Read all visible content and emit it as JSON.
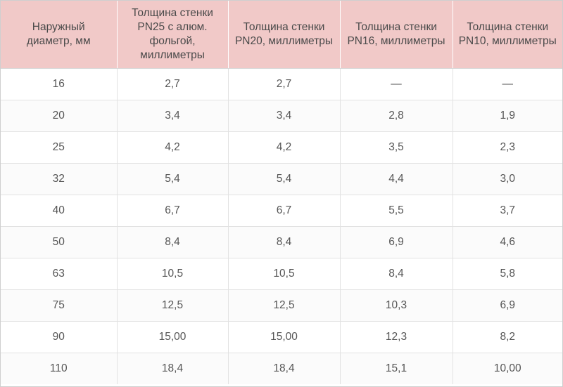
{
  "table": {
    "headers": [
      "Наружный диаметр, мм",
      "Толщина стенки PN25 с алюм. фольгой, миллиметры",
      "Толщина стенки PN20, миллиметры",
      "Толщина стенки PN16, миллиметры",
      "Толщина стенки PN10, миллиметры"
    ],
    "rows": [
      [
        "16",
        "2,7",
        "2,7",
        "—",
        "—"
      ],
      [
        "20",
        "3,4",
        "3,4",
        "2,8",
        "1,9"
      ],
      [
        "25",
        "4,2",
        "4,2",
        "3,5",
        "2,3"
      ],
      [
        "32",
        "5,4",
        "5,4",
        "4,4",
        "3,0"
      ],
      [
        "40",
        "6,7",
        "6,7",
        "5,5",
        "3,7"
      ],
      [
        "50",
        "8,4",
        "8,4",
        "6,9",
        "4,6"
      ],
      [
        "63",
        "10,5",
        "10,5",
        "8,4",
        "5,8"
      ],
      [
        "75",
        "12,5",
        "12,5",
        "10,3",
        "6,9"
      ],
      [
        "90",
        "15,00",
        "15,00",
        "12,3",
        "8,2"
      ],
      [
        "110",
        "18,4",
        "18,4",
        "15,1",
        "10,00"
      ]
    ]
  },
  "colors": {
    "header_bg": "#f1c9c8",
    "header_text": "#4a4a4a",
    "cell_text": "#555555",
    "grid": "#e2e2e2"
  }
}
